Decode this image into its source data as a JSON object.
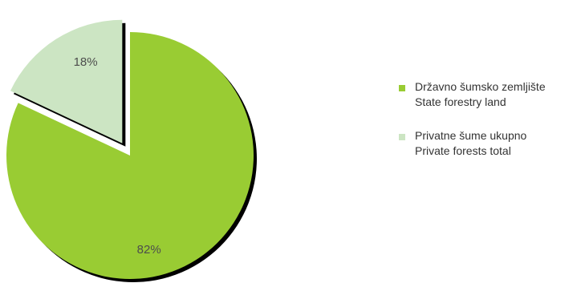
{
  "chart_data": {
    "type": "pie",
    "title": "",
    "slices": [
      {
        "label_line1": "Državno šumsko zemljište",
        "label_line2": "State forestry land",
        "value": 82,
        "data_label": "82%",
        "color": "#99cc33",
        "exploded": false
      },
      {
        "label_line1": "Privatne šume ukupno",
        "label_line2": "Private forests total",
        "value": 18,
        "data_label": "18%",
        "color": "#cce5c3",
        "exploded": true
      }
    ],
    "legend_position": "right",
    "start": "top",
    "direction": "clockwise"
  }
}
